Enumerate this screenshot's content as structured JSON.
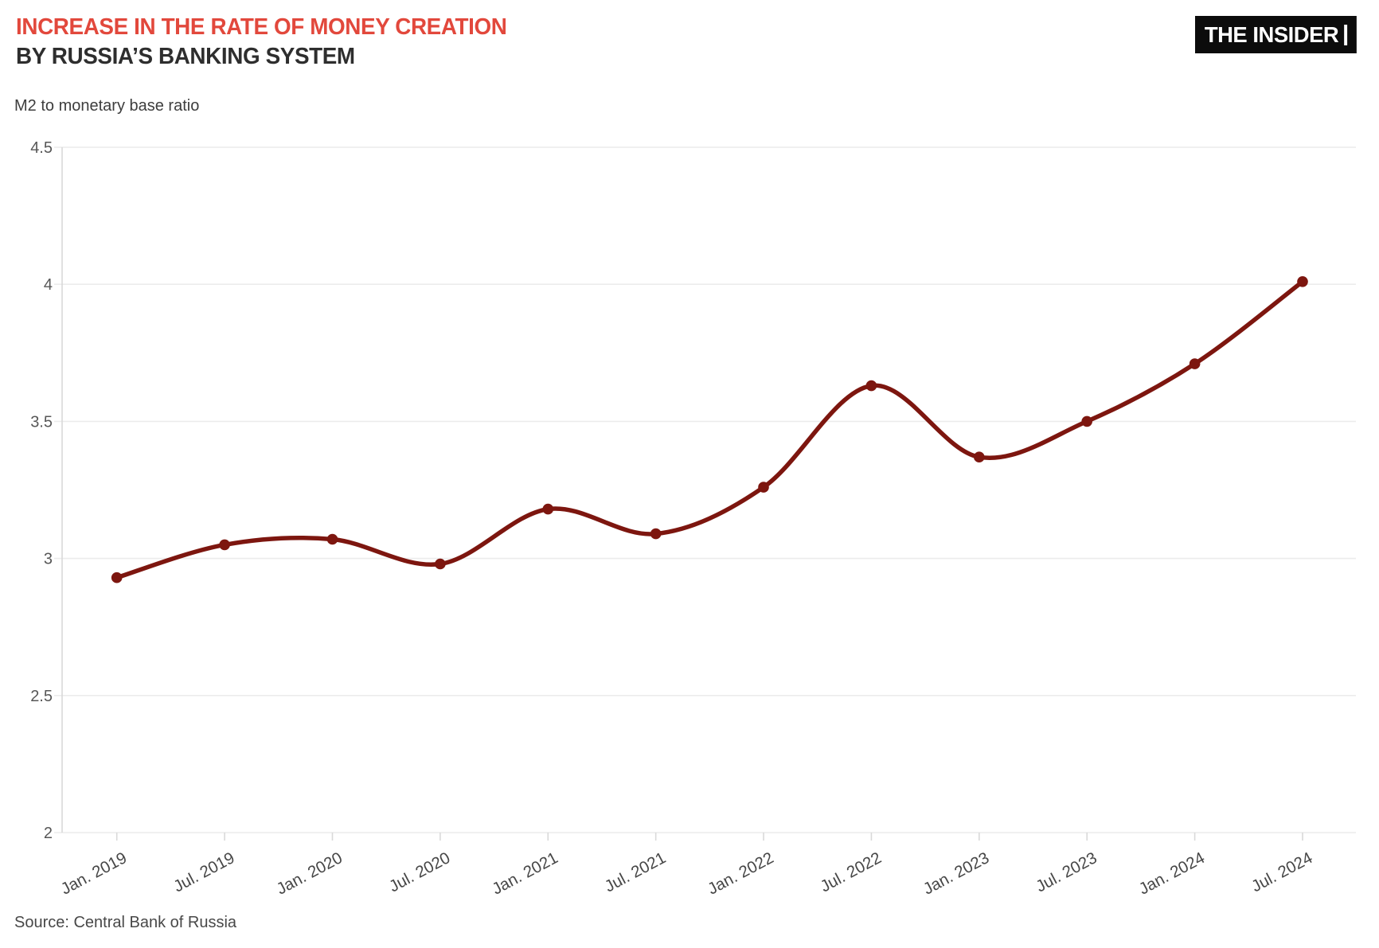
{
  "header": {
    "title_line1": "INCREASE IN THE RATE OF MONEY CREATION",
    "title_line2": "BY RUSSIA’S BANKING SYSTEM",
    "logo_text": "THE INSIDER"
  },
  "chart_data": {
    "type": "line",
    "title": "Increase in the rate of money creation by Russia's banking system",
    "unit_label": "M2 to monetary base ratio",
    "categories": [
      "Jan. 2019",
      "Jul. 2019",
      "Jan. 2020",
      "Jul. 2020",
      "Jan. 2021",
      "Jul. 2021",
      "Jan. 2022",
      "Jul. 2022",
      "Jan. 2023",
      "Jul. 2023",
      "Jan. 2024",
      "Jul. 2024"
    ],
    "values": [
      2.93,
      3.05,
      3.07,
      2.98,
      3.18,
      3.09,
      3.26,
      3.63,
      3.37,
      3.5,
      3.71,
      4.01
    ],
    "ylim": [
      2,
      4.5
    ],
    "yticks": [
      2,
      2.5,
      3,
      3.5,
      4,
      4.5
    ],
    "grid": true,
    "legend": false,
    "line_color": "#7d160f",
    "marker": "circle"
  },
  "footer": {
    "source": "Source: Central Bank of Russia"
  },
  "colors": {
    "accent_red": "#e2483c",
    "line": "#7d160f",
    "grid": "#ececec",
    "axis": "#d9d9d9",
    "y_tick_label": "#575757",
    "x_tick_label": "#474747",
    "logo_bg": "#0c0c0c"
  }
}
